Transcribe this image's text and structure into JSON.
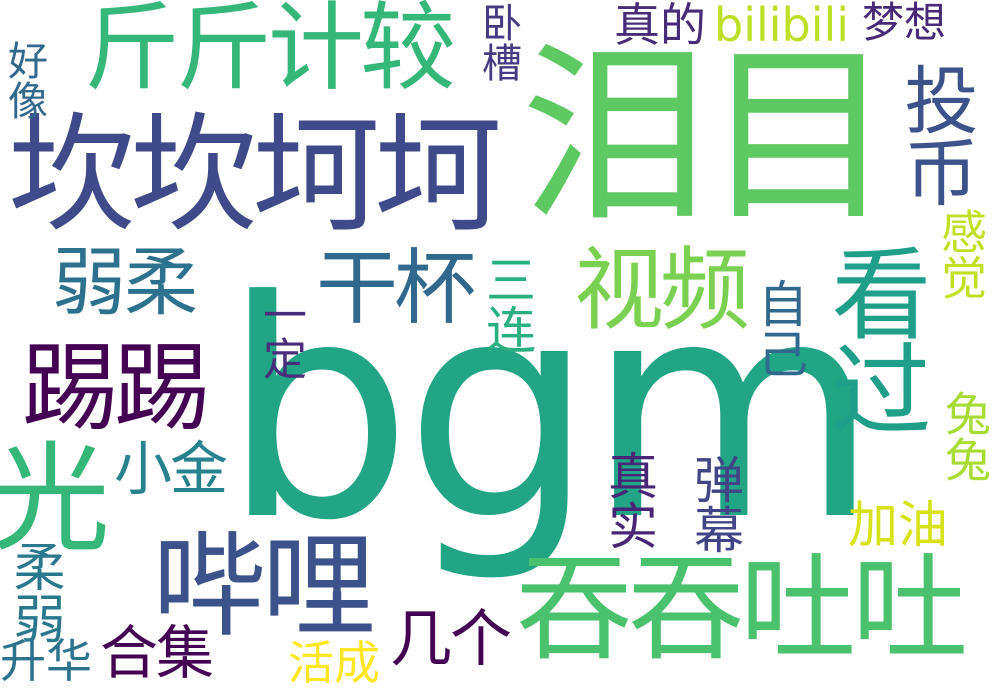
{
  "words": {
    "bgm": {
      "text": "bgm",
      "color": "#21a585"
    },
    "leimu": {
      "text": "泪目",
      "color": "#5ec962"
    },
    "kankan": {
      "text": "坎坎坷坷",
      "color": "#3e4a89"
    },
    "jinjin": {
      "text": "斤斤计较",
      "color": "#35b779"
    },
    "tuntun": {
      "text": "吞吞吐吐",
      "color": "#4ac16d"
    },
    "bili": {
      "text": "哔哩",
      "color": "#3b528b"
    },
    "tita": {
      "text": "踢踢",
      "color": "#440154"
    },
    "kanguo": {
      "text": "看过",
      "color": "#1f9e89"
    },
    "shipin": {
      "text": "视频",
      "color": "#7ad151"
    },
    "toubi": {
      "text": "投币",
      "color": "#3b528b"
    },
    "ganbei": {
      "text": "干杯",
      "color": "#31688e"
    },
    "ruorou": {
      "text": "弱柔",
      "color": "#2c728e"
    },
    "guang": {
      "text": "光",
      "color": "#35b779"
    },
    "roruo": {
      "text": "柔弱",
      "color": "#2a788e"
    },
    "xiaojin": {
      "text": "小金",
      "color": "#26828e"
    },
    "sanlian": {
      "text": "三连",
      "color": "#2ab07f"
    },
    "yiding": {
      "text": "一定",
      "color": "#472d7b"
    },
    "ziji": {
      "text": "自己",
      "color": "#31688e"
    },
    "jiayou": {
      "text": "加油",
      "color": "#d8e219"
    },
    "danmu": {
      "text": "弹幕",
      "color": "#414487"
    },
    "zhenshi": {
      "text": "真实",
      "color": "#482576"
    },
    "jige": {
      "text": "几个",
      "color": "#440154"
    },
    "heji": {
      "text": "合集",
      "color": "#440154"
    },
    "shenghua": {
      "text": "升华",
      "color": "#2c728e"
    },
    "huocheng": {
      "text": "活成",
      "color": "#fde725"
    },
    "haoxiang": {
      "text": "好像",
      "color": "#31688e"
    },
    "wocao": {
      "text": "卧槽",
      "color": "#443a83"
    },
    "zhende": {
      "text": "真的",
      "color": "#472c7a"
    },
    "bilibili": {
      "text": "bilibili",
      "color": "#bddf26"
    },
    "mengxiang": {
      "text": "梦想",
      "color": "#482878"
    },
    "ganjue": {
      "text": "感觉",
      "color": "#c2df23"
    },
    "tutu": {
      "text": "兔兔",
      "color": "#a8db34"
    }
  }
}
